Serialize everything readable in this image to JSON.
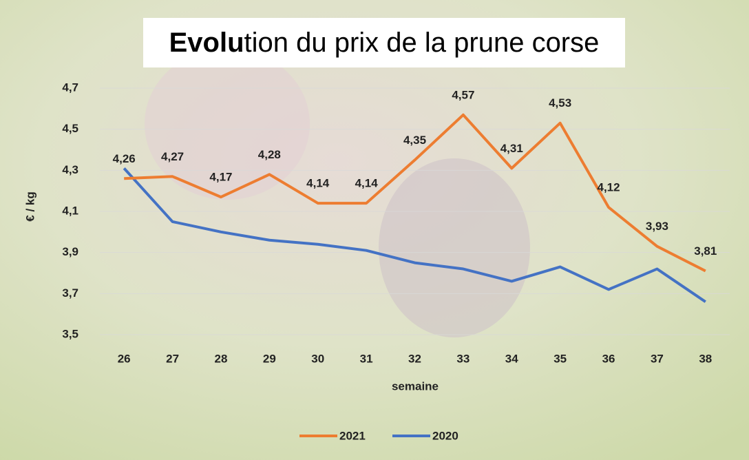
{
  "chart_data": {
    "type": "line",
    "title": [
      {
        "text": "Evolu",
        "bold": true
      },
      {
        "text": "tion du prix de la prune corse",
        "bold": false
      }
    ],
    "x_label": "semaine",
    "y_label": "€ / kg",
    "categories": [
      "26",
      "27",
      "28",
      "29",
      "30",
      "31",
      "32",
      "33",
      "34",
      "35",
      "36",
      "37",
      "38"
    ],
    "series": [
      {
        "name": "2021",
        "color": "#ed7d31",
        "values": [
          4.26,
          4.27,
          4.17,
          4.28,
          4.14,
          4.14,
          4.35,
          4.57,
          4.31,
          4.53,
          4.12,
          3.93,
          3.81
        ],
        "value_labels": [
          "4,26",
          "4,27",
          "4,17",
          "4,28",
          "4,14",
          "4,14",
          "4,35",
          "4,57",
          "4,31",
          "4,53",
          "4,12",
          "3,93",
          "3,81"
        ]
      },
      {
        "name": "2020",
        "color": "#4472c4",
        "values": [
          4.31,
          4.05,
          4.0,
          3.96,
          3.94,
          3.91,
          3.85,
          3.82,
          3.76,
          3.83,
          3.72,
          3.82,
          3.66
        ]
      }
    ],
    "ylim": [
      3.5,
      4.7
    ],
    "yticks": [
      {
        "value": 3.5,
        "label": "3,5"
      },
      {
        "value": 3.7,
        "label": "3,7"
      },
      {
        "value": 3.9,
        "label": "3,9"
      },
      {
        "value": 4.1,
        "label": "4,1"
      },
      {
        "value": 4.3,
        "label": "4,3"
      },
      {
        "value": 4.5,
        "label": "4,5"
      },
      {
        "value": 4.7,
        "label": "4,7"
      }
    ],
    "grid": true,
    "legend": "bottom"
  }
}
